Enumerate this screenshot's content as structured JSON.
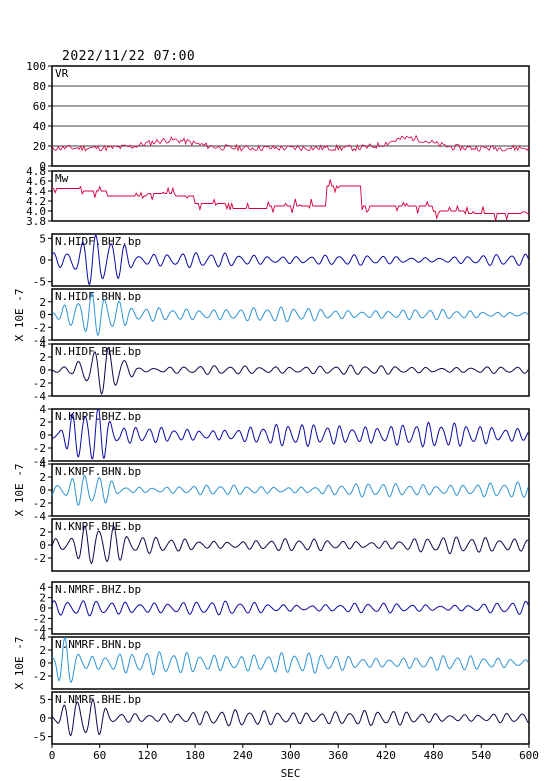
{
  "header": {
    "datetime": "2022/11/22 07:00"
  },
  "chart_data": {
    "type": "line",
    "xlabel": "SEC",
    "xlim": [
      0,
      600
    ],
    "xticks": [
      0,
      60,
      120,
      180,
      240,
      300,
      360,
      420,
      480,
      540,
      600
    ],
    "colors": {
      "param": "#d4003c",
      "z": "#0a0aa6",
      "n": "#2e95d6",
      "e": "#0d0a4a",
      "grid": "#000000"
    },
    "panels": [
      {
        "id": "vr",
        "label": "VR",
        "kind": "vr",
        "ylim": [
          0,
          100
        ],
        "yticks": [
          0,
          20,
          40,
          60,
          80,
          100
        ]
      },
      {
        "id": "mw",
        "label": "Mw",
        "kind": "mw",
        "ylim": [
          3.8,
          4.8
        ],
        "yticks": [
          3.8,
          4.0,
          4.2,
          4.4,
          4.6,
          4.8
        ],
        "steps": [
          [
            0,
            4.45
          ],
          [
            36,
            4.4
          ],
          [
            70,
            4.3
          ],
          [
            120,
            4.35
          ],
          [
            155,
            4.3
          ],
          [
            180,
            4.15
          ],
          [
            228,
            4.05
          ],
          [
            272,
            4.1
          ],
          [
            330,
            4.1
          ],
          [
            345,
            4.5
          ],
          [
            390,
            4.1
          ],
          [
            440,
            4.1
          ],
          [
            480,
            4.0
          ],
          [
            520,
            3.95
          ],
          [
            600,
            3.95
          ]
        ]
      },
      {
        "id": "hidf-z",
        "label": "N.HIDF.BHZ.bp",
        "kind": "wave",
        "comp": "z",
        "ylim": [
          -6,
          6
        ],
        "yticks": [
          -5,
          0,
          5
        ],
        "burst": [
          10,
          110,
          5.0
        ],
        "base": 1.2,
        "seed": 1,
        "period": 18
      },
      {
        "id": "hidf-n",
        "label": "N.HIDF.BHN.bp",
        "kind": "wave",
        "comp": "n",
        "ylim": [
          -4,
          4
        ],
        "yticks": [
          -4,
          -2,
          0,
          2
        ],
        "burst": [
          0,
          110,
          2.8
        ],
        "base": 0.8,
        "seed": 2,
        "period": 17
      },
      {
        "id": "hidf-e",
        "label": "N.HIDF.BHE.bp",
        "kind": "wave",
        "comp": "e",
        "ylim": [
          -4,
          4
        ],
        "yticks": [
          -4,
          -2,
          0,
          2,
          4
        ],
        "burst": [
          20,
          110,
          3.0
        ],
        "base": 0.5,
        "seed": 3,
        "period": 19
      },
      {
        "id": "knpf-z",
        "label": "N.KNPF.BHZ.bp",
        "kind": "wave",
        "comp": "z",
        "ylim": [
          -4,
          4
        ],
        "yticks": [
          -4,
          -2,
          0,
          2,
          4
        ],
        "burst": [
          5,
          90,
          3.8
        ],
        "base": 1.3,
        "seed": 4,
        "period": 16
      },
      {
        "id": "knpf-n",
        "label": "N.KNPF.BHN.bp",
        "kind": "wave",
        "comp": "n",
        "ylim": [
          -4,
          4
        ],
        "yticks": [
          -4,
          -2,
          0,
          2,
          4
        ],
        "burst": [
          5,
          90,
          2.2
        ],
        "base": 0.8,
        "seed": 5,
        "period": 17
      },
      {
        "id": "knpf-e",
        "label": "N.KNPF.BHE.bp",
        "kind": "wave",
        "comp": "e",
        "ylim": [
          -4,
          4
        ],
        "yticks": [
          -2,
          0,
          2
        ],
        "burst": [
          10,
          110,
          2.8
        ],
        "base": 1.0,
        "seed": 6,
        "period": 18
      },
      {
        "id": "nmrf-z",
        "label": "N.NMRF.BHZ.bp",
        "kind": "wave",
        "comp": "z",
        "ylim": [
          -5,
          5
        ],
        "yticks": [
          -4,
          -2,
          0,
          2,
          4
        ],
        "burst": [
          0,
          60,
          1.2
        ],
        "base": 1.0,
        "seed": 7,
        "period": 18
      },
      {
        "id": "nmrf-n",
        "label": "N.NMRF.BHN.bp",
        "kind": "wave",
        "comp": "n",
        "ylim": [
          -4,
          4
        ],
        "yticks": [
          -2,
          0,
          2,
          4
        ],
        "burst": [
          0,
          40,
          3.5
        ],
        "base": 1.2,
        "seed": 8,
        "period": 17
      },
      {
        "id": "nmrf-e",
        "label": "N.NMRF.BHE.bp",
        "kind": "wave",
        "comp": "e",
        "ylim": [
          -7,
          7
        ],
        "yticks": [
          -5,
          0,
          5
        ],
        "burst": [
          0,
          80,
          5.0
        ],
        "base": 1.5,
        "seed": 9,
        "period": 18
      }
    ],
    "groups": [
      {
        "ylabel": "X 10E -7",
        "panels": [
          "hidf-z",
          "hidf-n",
          "hidf-e"
        ]
      },
      {
        "ylabel": "X 10E -7",
        "panels": [
          "knpf-z",
          "knpf-n",
          "knpf-e"
        ]
      },
      {
        "ylabel": "X 10E -7",
        "panels": [
          "nmrf-z",
          "nmrf-n",
          "nmrf-e"
        ]
      }
    ]
  }
}
